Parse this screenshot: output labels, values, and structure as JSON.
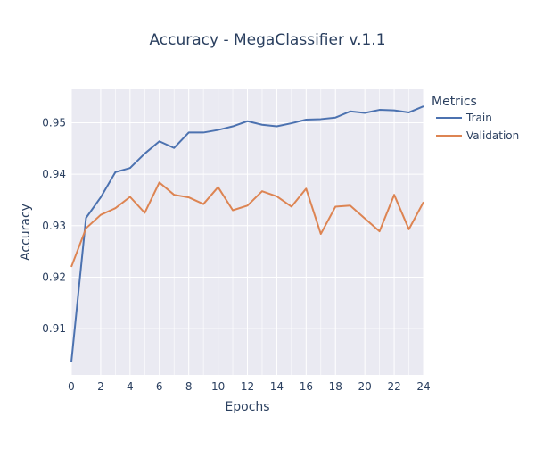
{
  "chart_data": {
    "type": "line",
    "title": "Accuracy - MegaClassifier v.1.1",
    "xlabel": "Epochs",
    "ylabel": "Accuracy",
    "xlim": [
      0,
      24
    ],
    "ylim": [
      0.901,
      0.9565
    ],
    "x_ticks": [
      0,
      2,
      4,
      6,
      8,
      10,
      12,
      14,
      16,
      18,
      20,
      22,
      24
    ],
    "y_ticks": [
      0.91,
      0.92,
      0.93,
      0.94,
      0.95
    ],
    "x_tick_labels": [
      "0",
      "2",
      "4",
      "6",
      "8",
      "10",
      "12",
      "14",
      "16",
      "18",
      "20",
      "22",
      "24"
    ],
    "y_tick_labels": [
      "0.91",
      "0.92",
      "0.93",
      "0.94",
      "0.95"
    ],
    "grid": true,
    "legend_title": "Metrics",
    "legend_position": "right",
    "x": [
      0,
      1,
      2,
      3,
      4,
      5,
      6,
      7,
      8,
      9,
      10,
      11,
      12,
      13,
      14,
      15,
      16,
      17,
      18,
      19,
      20,
      21,
      22,
      23,
      24
    ],
    "series": [
      {
        "name": "Train",
        "color": "#4c72b0",
        "values": [
          0.9035,
          0.9315,
          0.9355,
          0.9404,
          0.9412,
          0.944,
          0.9464,
          0.9451,
          0.9481,
          0.9481,
          0.9486,
          0.9493,
          0.9503,
          0.9496,
          0.9493,
          0.9499,
          0.9506,
          0.9507,
          0.951,
          0.9522,
          0.9519,
          0.9525,
          0.9524,
          0.952,
          0.9532
        ]
      },
      {
        "name": "Validation",
        "color": "#dd8452",
        "values": [
          0.922,
          0.9295,
          0.9321,
          0.9334,
          0.9356,
          0.9325,
          0.9384,
          0.936,
          0.9355,
          0.9342,
          0.9375,
          0.933,
          0.9339,
          0.9367,
          0.9357,
          0.9337,
          0.9372,
          0.9284,
          0.9337,
          0.9339,
          0.9314,
          0.9289,
          0.936,
          0.9293,
          0.9346
        ]
      }
    ],
    "colors": {
      "plot_bg": "#eaeaf2",
      "grid": "#ffffff",
      "text": "#2a3f5f"
    }
  }
}
